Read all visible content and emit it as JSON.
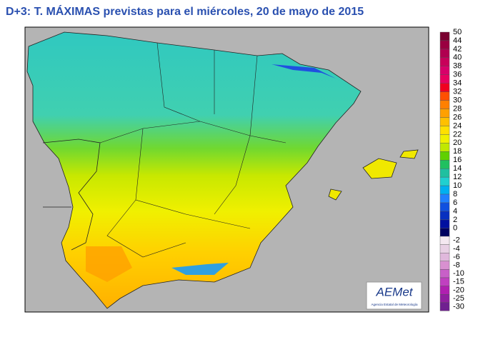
{
  "header": {
    "title": "D+3: T. MÁXIMAS previstas para el miércoles, 20 de mayo de 2015"
  },
  "legend": {
    "positive": [
      {
        "label": "50",
        "color": "#7a0030"
      },
      {
        "label": "44",
        "color": "#9a0040"
      },
      {
        "label": "42",
        "color": "#b00050"
      },
      {
        "label": "40",
        "color": "#c8005a"
      },
      {
        "label": "38",
        "color": "#d8006a"
      },
      {
        "label": "36",
        "color": "#e80060"
      },
      {
        "label": "34",
        "color": "#f00020"
      },
      {
        "label": "32",
        "color": "#ff5000"
      },
      {
        "label": "30",
        "color": "#ff8000"
      },
      {
        "label": "28",
        "color": "#ffa000"
      },
      {
        "label": "26",
        "color": "#ffc000"
      },
      {
        "label": "24",
        "color": "#ffe000"
      },
      {
        "label": "22",
        "color": "#f0f000"
      },
      {
        "label": "20",
        "color": "#c0e800"
      },
      {
        "label": "18",
        "color": "#60d000"
      },
      {
        "label": "16",
        "color": "#20c060"
      },
      {
        "label": "14",
        "color": "#20c0a0"
      },
      {
        "label": "12",
        "color": "#20d0d0"
      },
      {
        "label": "10",
        "color": "#00b0f0"
      },
      {
        "label": "8",
        "color": "#2080ff"
      },
      {
        "label": "6",
        "color": "#1050e0"
      },
      {
        "label": "4",
        "color": "#0830c0"
      },
      {
        "label": "2",
        "color": "#0010a0"
      },
      {
        "label": "0",
        "color": "#000060"
      }
    ],
    "negative": [
      {
        "label": "-2",
        "color": "#f4e8f0"
      },
      {
        "label": "-4",
        "color": "#e8d0e4"
      },
      {
        "label": "-6",
        "color": "#e0b8dc"
      },
      {
        "label": "-8",
        "color": "#d890d0"
      },
      {
        "label": "-10",
        "color": "#c860c8"
      },
      {
        "label": "-15",
        "color": "#c040c0"
      },
      {
        "label": "-20",
        "color": "#b020b0"
      },
      {
        "label": "-25",
        "color": "#9020a0"
      },
      {
        "label": "-30",
        "color": "#702090"
      }
    ]
  },
  "logo": {
    "name": "AEMet",
    "subtitle": "Agencia Estatal de Meteorología"
  }
}
